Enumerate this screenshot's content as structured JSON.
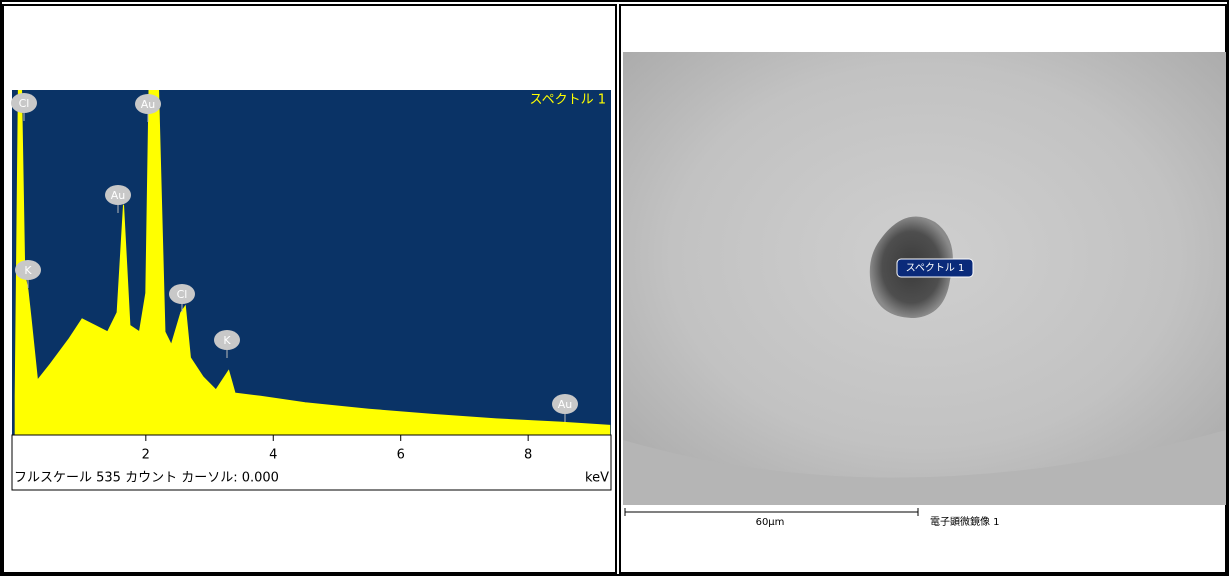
{
  "chart_data": {
    "type": "area",
    "title": "スペクトル 1",
    "footer": "フルスケール 535 カウント カーソル: 0.000",
    "x_unit": "keV",
    "x": [
      -0.05,
      0.0,
      0.05,
      0.1,
      0.15,
      0.2,
      0.3,
      0.5,
      0.8,
      1.0,
      1.2,
      1.4,
      1.55,
      1.65,
      1.75,
      1.9,
      2.0,
      2.05,
      2.2,
      2.3,
      2.4,
      2.55,
      2.62,
      2.7,
      2.9,
      3.1,
      3.3,
      3.4,
      3.8,
      4.5,
      5.5,
      6.5,
      7.5,
      8.5,
      9.28
    ],
    "values": [
      60,
      535,
      535,
      250,
      225,
      180,
      85,
      110,
      150,
      180,
      170,
      160,
      190,
      357,
      170,
      160,
      220,
      535,
      535,
      160,
      140,
      190,
      200,
      120,
      90,
      70,
      100,
      65,
      60,
      50,
      40,
      32,
      25,
      20,
      15
    ],
    "color": "#ffff00",
    "background": "#0a3366",
    "xlim": [
      -0.1,
      9.3
    ],
    "xticks": [
      2,
      4,
      6,
      8
    ],
    "ylim": [
      0,
      535
    ],
    "peak_labels": [
      "Cl",
      "Au",
      "Au",
      "K",
      "Cl",
      "K",
      "Au"
    ]
  },
  "image_panel": {
    "marker_label": "スペクトル 1",
    "scale_label": "60µm",
    "caption": "電子顕微鏡像 1"
  }
}
